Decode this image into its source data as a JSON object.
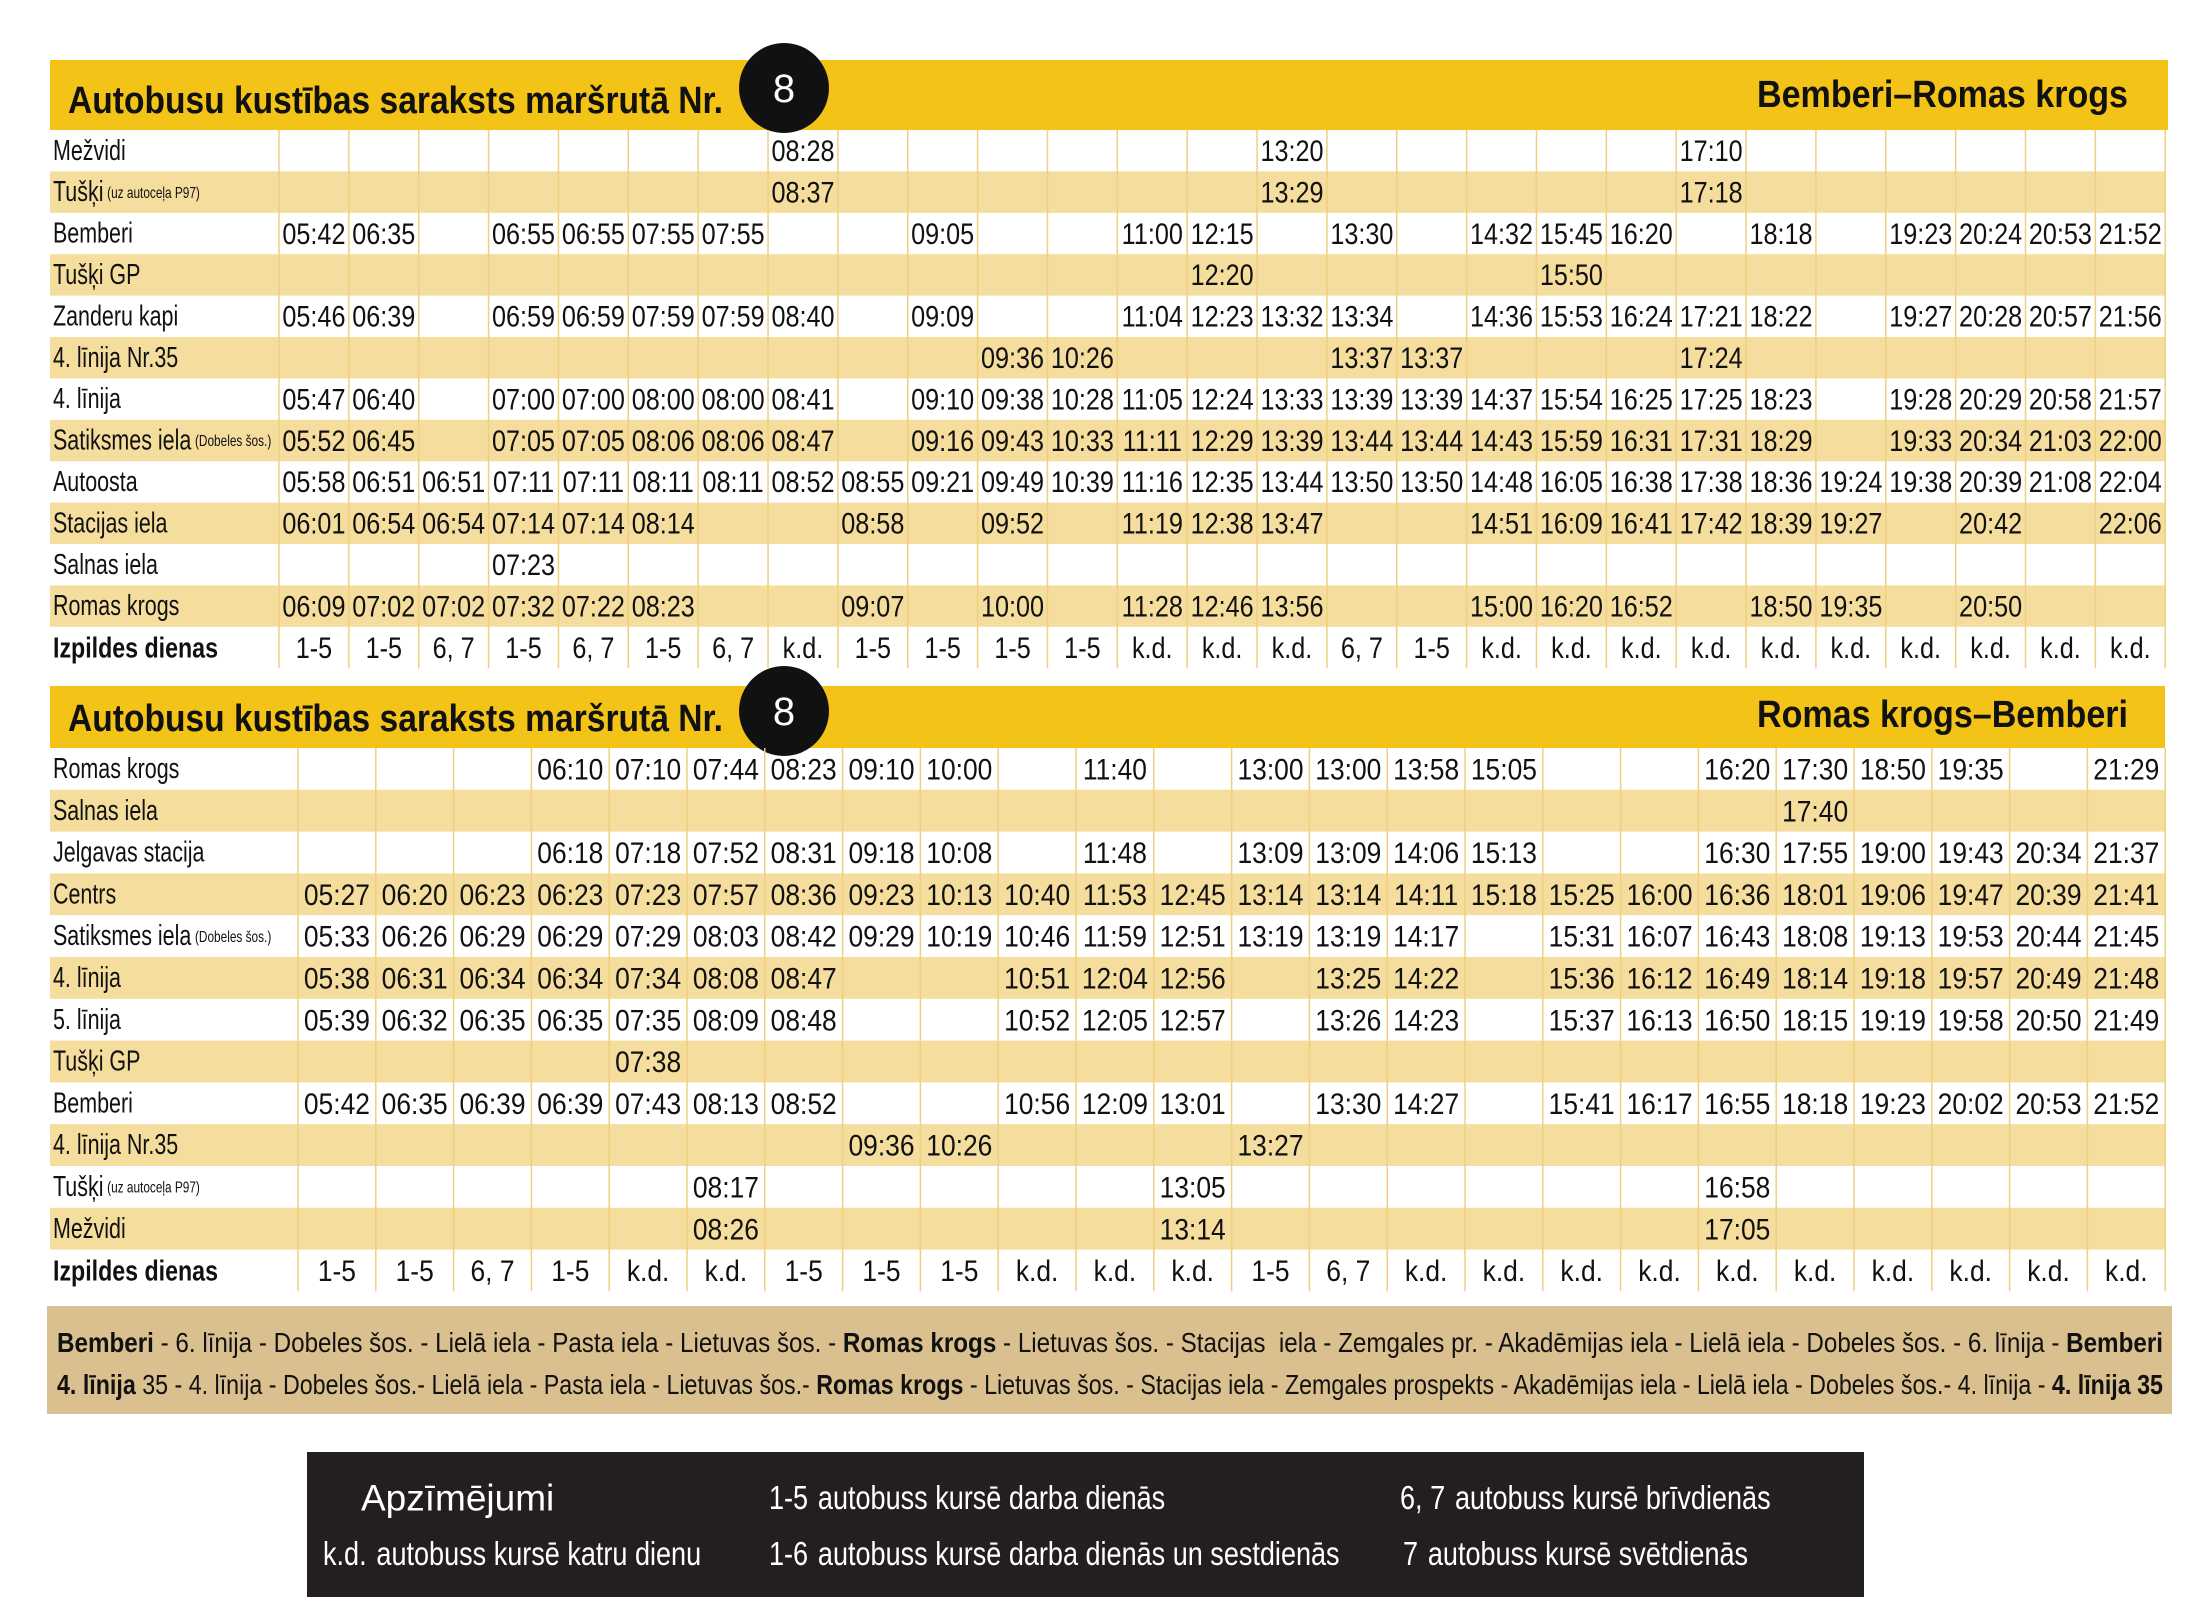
{
  "timetables": [
    {
      "title": "Autobusu kustības saraksts maršrutā Nr.",
      "route_number": "8",
      "direction": "Bemberi–Romas krogs",
      "rows": [
        {
          "stop": "Mežvidi",
          "times": [
            null,
            null,
            null,
            null,
            null,
            null,
            null,
            "08:28",
            null,
            null,
            null,
            null,
            null,
            null,
            "13:20",
            null,
            null,
            null,
            null,
            null,
            "17:10",
            null,
            null,
            null,
            null,
            null,
            null
          ]
        },
        {
          "stop": "Tušķi",
          "stop_note": "(uz autoceļa P97)",
          "times": [
            null,
            null,
            null,
            null,
            null,
            null,
            null,
            "08:37",
            null,
            null,
            null,
            null,
            null,
            null,
            "13:29",
            null,
            null,
            null,
            null,
            null,
            "17:18",
            null,
            null,
            null,
            null,
            null,
            null
          ]
        },
        {
          "stop": "Bemberi",
          "times": [
            "05:42",
            "06:35",
            null,
            "06:55",
            "06:55",
            "07:55",
            "07:55",
            null,
            null,
            "09:05",
            null,
            null,
            "11:00",
            "12:15",
            null,
            "13:30",
            null,
            "14:32",
            "15:45",
            "16:20",
            null,
            "18:18",
            null,
            "19:23",
            "20:24",
            "20:53",
            "21:52"
          ]
        },
        {
          "stop": "Tušķi GP",
          "times": [
            null,
            null,
            null,
            null,
            null,
            null,
            null,
            null,
            null,
            null,
            null,
            null,
            null,
            "12:20",
            null,
            null,
            null,
            null,
            "15:50",
            null,
            null,
            null,
            null,
            null,
            null,
            null,
            null
          ]
        },
        {
          "stop": "Zanderu kapi",
          "times": [
            "05:46",
            "06:39",
            null,
            "06:59",
            "06:59",
            "07:59",
            "07:59",
            "08:40",
            null,
            "09:09",
            null,
            null,
            "11:04",
            "12:23",
            "13:32",
            "13:34",
            null,
            "14:36",
            "15:53",
            "16:24",
            "17:21",
            "18:22",
            null,
            "19:27",
            "20:28",
            "20:57",
            "21:56"
          ]
        },
        {
          "stop": "4. līnija Nr.35",
          "times": [
            null,
            null,
            null,
            null,
            null,
            null,
            null,
            null,
            null,
            null,
            "09:36",
            "10:26",
            null,
            null,
            null,
            "13:37",
            "13:37",
            null,
            null,
            null,
            "17:24",
            null,
            null,
            null,
            null,
            null,
            null
          ]
        },
        {
          "stop": "4. līnija",
          "times": [
            "05:47",
            "06:40",
            null,
            "07:00",
            "07:00",
            "08:00",
            "08:00",
            "08:41",
            null,
            "09:10",
            "09:38",
            "10:28",
            "11:05",
            "12:24",
            "13:33",
            "13:39",
            "13:39",
            "14:37",
            "15:54",
            "16:25",
            "17:25",
            "18:23",
            null,
            "19:28",
            "20:29",
            "20:58",
            "21:57"
          ]
        },
        {
          "stop": "Satiksmes iela",
          "stop_note": "(Dobeles šos.)",
          "times": [
            "05:52",
            "06:45",
            null,
            "07:05",
            "07:05",
            "08:06",
            "08:06",
            "08:47",
            null,
            "09:16",
            "09:43",
            "10:33",
            "11:11",
            "12:29",
            "13:39",
            "13:44",
            "13:44",
            "14:43",
            "15:59",
            "16:31",
            "17:31",
            "18:29",
            null,
            "19:33",
            "20:34",
            "21:03",
            "22:00"
          ]
        },
        {
          "stop": "Autoosta",
          "times": [
            "05:58",
            "06:51",
            "06:51",
            "07:11",
            "07:11",
            "08:11",
            "08:11",
            "08:52",
            "08:55",
            "09:21",
            "09:49",
            "10:39",
            "11:16",
            "12:35",
            "13:44",
            "13:50",
            "13:50",
            "14:48",
            "16:05",
            "16:38",
            "17:38",
            "18:36",
            "19:24",
            "19:38",
            "20:39",
            "21:08",
            "22:04"
          ]
        },
        {
          "stop": "Stacijas iela",
          "times": [
            "06:01",
            "06:54",
            "06:54",
            "07:14",
            "07:14",
            "08:14",
            null,
            null,
            "08:58",
            null,
            "09:52",
            null,
            "11:19",
            "12:38",
            "13:47",
            null,
            null,
            "14:51",
            "16:09",
            "16:41",
            "17:42",
            "18:39",
            "19:27",
            null,
            "20:42",
            null,
            "22:06"
          ]
        },
        {
          "stop": "Salnas iela",
          "times": [
            null,
            null,
            null,
            "07:23",
            null,
            null,
            null,
            null,
            null,
            null,
            null,
            null,
            null,
            null,
            null,
            null,
            null,
            null,
            null,
            null,
            null,
            null,
            null,
            null,
            null,
            null,
            null
          ]
        },
        {
          "stop": "Romas krogs",
          "times": [
            "06:09",
            "07:02",
            "07:02",
            "07:32",
            "07:22",
            "08:23",
            null,
            null,
            "09:07",
            null,
            "10:00",
            null,
            "11:28",
            "12:46",
            "13:56",
            null,
            null,
            "15:00",
            "16:20",
            "16:52",
            null,
            "18:50",
            "19:35",
            null,
            "20:50",
            null,
            null
          ]
        }
      ],
      "days_label": "Izpildes dienas",
      "days": [
        "1-5",
        "1-5",
        "6, 7",
        "1-5",
        "6, 7",
        "1-5",
        "6, 7",
        "k.d.",
        "1-5",
        "1-5",
        "1-5",
        "1-5",
        "k.d.",
        "k.d.",
        "k.d.",
        "6, 7",
        "1-5",
        "k.d.",
        "k.d.",
        "k.d.",
        "k.d.",
        "k.d.",
        "k.d.",
        "k.d.",
        "k.d.",
        "k.d.",
        "k.d."
      ]
    },
    {
      "title": "Autobusu kustības saraksts maršrutā Nr.",
      "route_number": "8",
      "direction": "Romas krogs–Bemberi",
      "rows": [
        {
          "stop": "Romas krogs",
          "times": [
            null,
            null,
            null,
            "06:10",
            "07:10",
            "07:44",
            "08:23",
            "09:10",
            "10:00",
            null,
            "11:40",
            null,
            "13:00",
            "13:00",
            "13:58",
            "15:05",
            null,
            null,
            "16:20",
            "17:30",
            "18:50",
            "19:35",
            null,
            "21:29"
          ]
        },
        {
          "stop": "Salnas iela",
          "times": [
            null,
            null,
            null,
            null,
            null,
            null,
            null,
            null,
            null,
            null,
            null,
            null,
            null,
            null,
            null,
            null,
            null,
            null,
            null,
            "17:40",
            null,
            null,
            null,
            null
          ]
        },
        {
          "stop": "Jelgavas stacija",
          "times": [
            null,
            null,
            null,
            "06:18",
            "07:18",
            "07:52",
            "08:31",
            "09:18",
            "10:08",
            null,
            "11:48",
            null,
            "13:09",
            "13:09",
            "14:06",
            "15:13",
            null,
            null,
            "16:30",
            "17:55",
            "19:00",
            "19:43",
            "20:34",
            "21:37"
          ]
        },
        {
          "stop": "Centrs",
          "times": [
            "05:27",
            "06:20",
            "06:23",
            "06:23",
            "07:23",
            "07:57",
            "08:36",
            "09:23",
            "10:13",
            "10:40",
            "11:53",
            "12:45",
            "13:14",
            "13:14",
            "14:11",
            "15:18",
            "15:25",
            "16:00",
            "16:36",
            "18:01",
            "19:06",
            "19:47",
            "20:39",
            "21:41"
          ]
        },
        {
          "stop": "Satiksmes iela",
          "stop_note": "(Dobeles šos.)",
          "times": [
            "05:33",
            "06:26",
            "06:29",
            "06:29",
            "07:29",
            "08:03",
            "08:42",
            "09:29",
            "10:19",
            "10:46",
            "11:59",
            "12:51",
            "13:19",
            "13:19",
            "14:17",
            null,
            "15:31",
            "16:07",
            "16:43",
            "18:08",
            "19:13",
            "19:53",
            "20:44",
            "21:45"
          ]
        },
        {
          "stop": "4. līnija",
          "times": [
            "05:38",
            "06:31",
            "06:34",
            "06:34",
            "07:34",
            "08:08",
            "08:47",
            null,
            null,
            "10:51",
            "12:04",
            "12:56",
            null,
            "13:25",
            "14:22",
            null,
            "15:36",
            "16:12",
            "16:49",
            "18:14",
            "19:18",
            "19:57",
            "20:49",
            "21:48"
          ]
        },
        {
          "stop": "5. līnija",
          "times": [
            "05:39",
            "06:32",
            "06:35",
            "06:35",
            "07:35",
            "08:09",
            "08:48",
            null,
            null,
            "10:52",
            "12:05",
            "12:57",
            null,
            "13:26",
            "14:23",
            null,
            "15:37",
            "16:13",
            "16:50",
            "18:15",
            "19:19",
            "19:58",
            "20:50",
            "21:49"
          ]
        },
        {
          "stop": "Tušķi GP",
          "times": [
            null,
            null,
            null,
            null,
            "07:38",
            null,
            null,
            null,
            null,
            null,
            null,
            null,
            null,
            null,
            null,
            null,
            null,
            null,
            null,
            null,
            null,
            null,
            null,
            null
          ]
        },
        {
          "stop": "Bemberi",
          "times": [
            "05:42",
            "06:35",
            "06:39",
            "06:39",
            "07:43",
            "08:13",
            "08:52",
            null,
            null,
            "10:56",
            "12:09",
            "13:01",
            null,
            "13:30",
            "14:27",
            null,
            "15:41",
            "16:17",
            "16:55",
            "18:18",
            "19:23",
            "20:02",
            "20:53",
            "21:52"
          ]
        },
        {
          "stop": "4. līnija Nr.35",
          "times": [
            null,
            null,
            null,
            null,
            null,
            null,
            null,
            "09:36",
            "10:26",
            null,
            null,
            null,
            "13:27",
            null,
            null,
            null,
            null,
            null,
            null,
            null,
            null,
            null,
            null,
            null
          ]
        },
        {
          "stop": "Tušķi",
          "stop_note": "(uz autoceļa P97)",
          "times": [
            null,
            null,
            null,
            null,
            null,
            "08:17",
            null,
            null,
            null,
            null,
            null,
            "13:05",
            null,
            null,
            null,
            null,
            null,
            null,
            "16:58",
            null,
            null,
            null,
            null,
            null
          ]
        },
        {
          "stop": "Mežvidi",
          "times": [
            null,
            null,
            null,
            null,
            null,
            "08:26",
            null,
            null,
            null,
            null,
            null,
            "13:14",
            null,
            null,
            null,
            null,
            null,
            null,
            "17:05",
            null,
            null,
            null,
            null,
            null
          ]
        }
      ],
      "days_label": "Izpildes dienas",
      "days": [
        "1-5",
        "1-5",
        "6, 7",
        "1-5",
        "k.d.",
        "k.d.",
        "1-5",
        "1-5",
        "1-5",
        "k.d.",
        "k.d.",
        "k.d.",
        "1-5",
        "6, 7",
        "k.d.",
        "k.d.",
        "k.d.",
        "k.d.",
        "k.d.",
        "k.d.",
        "k.d.",
        "k.d.",
        "k.d.",
        "k.d."
      ]
    }
  ],
  "route_description": [
    [
      {
        "text": "Bemberi",
        "bold": true
      },
      {
        "text": " - 6. līnija - Dobeles šos. - Lielā iela - Pasta iela - Lietuvas šos. - ",
        "bold": false
      },
      {
        "text": "Romas krogs",
        "bold": true
      },
      {
        "text": " - Lietuvas šos. - Stacijas  iela - Zemgales pr. - Akadēmijas iela - Lielā iela - Dobeles šos. - 6. līnija - ",
        "bold": false
      },
      {
        "text": "Bemberi",
        "bold": true
      }
    ],
    [
      {
        "text": "4. līnija",
        "bold": true
      },
      {
        "text": " 35 - 4. līnija - Dobeles šos.- Lielā iela - Pasta iela - Lietuvas šos.- ",
        "bold": false
      },
      {
        "text": "Romas krogs",
        "bold": true
      },
      {
        "text": " - Lietuvas šos. - Stacijas iela - Zemgales prospekts - Akadēmijas iela - Lielā iela - Dobeles šos.- 4. līnija - ",
        "bold": false
      },
      {
        "text": "4. līnija 35",
        "bold": true
      }
    ]
  ],
  "legend": {
    "title": "Apzīmējumi",
    "items": [
      {
        "code": "1-5",
        "text": "autobuss kursē darba dienās"
      },
      {
        "code": "6, 7",
        "text": "autobuss kursē brīvdienās"
      },
      {
        "code": "k.d.",
        "text": "autobuss kursē katru dienu"
      },
      {
        "code": "1-6",
        "text": "autobuss kursē darba dienās un sestdienās"
      },
      {
        "code": "7",
        "text": "autobuss kursē svētdienās"
      }
    ]
  }
}
